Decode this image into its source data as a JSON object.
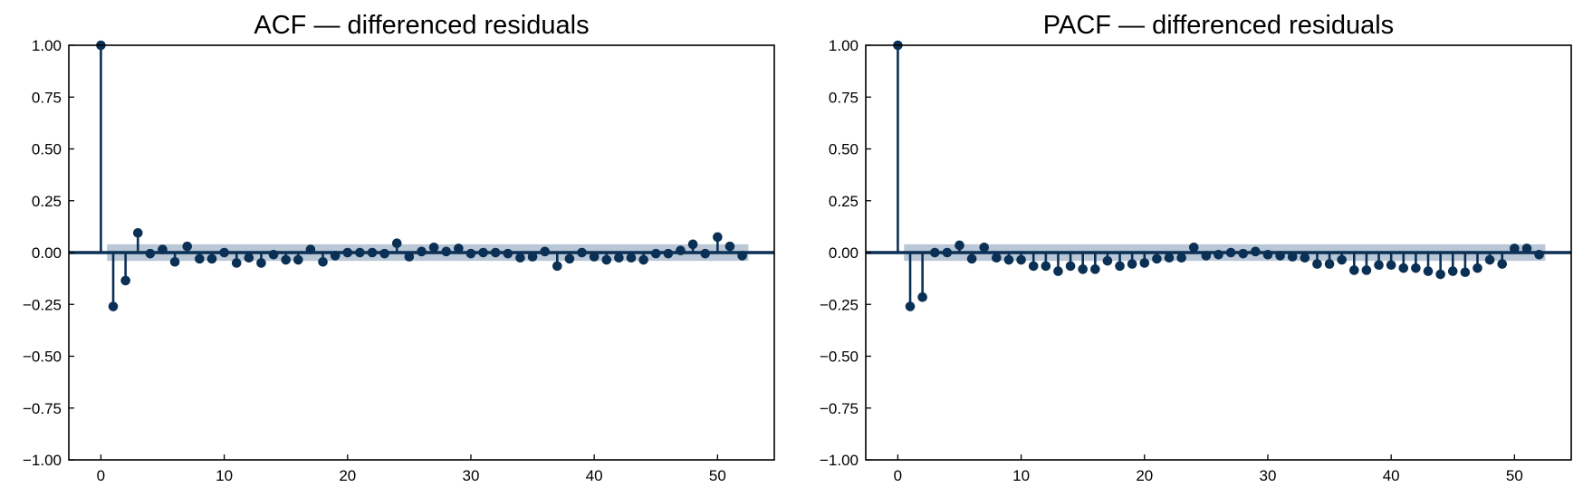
{
  "colors": {
    "stem": "#0b3055",
    "band": "#b9c7d6",
    "axis": "#000000"
  },
  "chart_data": [
    {
      "type": "stem",
      "title": "ACF — differenced residuals",
      "xlabel": "",
      "ylabel": "",
      "xlim": [
        -2.6,
        54.6
      ],
      "ylim": [
        -1.0,
        1.0
      ],
      "xticks": [
        0,
        10,
        20,
        30,
        40,
        50
      ],
      "yticks": [
        -1.0,
        -0.75,
        -0.5,
        -0.25,
        0.0,
        0.25,
        0.5,
        0.75,
        1.0
      ],
      "xtick_labels": [
        "0",
        "10",
        "20",
        "30",
        "40",
        "50"
      ],
      "ytick_labels": [
        "−1.00",
        "−0.75",
        "−0.50",
        "−0.25",
        "0.00",
        "0.25",
        "0.50",
        "0.75",
        "1.00"
      ],
      "confidence_band": {
        "x": [
          0.5,
          52.5
        ],
        "upper": 0.04,
        "lower": -0.04
      },
      "grid": false,
      "lags": [
        0,
        1,
        2,
        3,
        4,
        5,
        6,
        7,
        8,
        9,
        10,
        11,
        12,
        13,
        14,
        15,
        16,
        17,
        18,
        19,
        20,
        21,
        22,
        23,
        24,
        25,
        26,
        27,
        28,
        29,
        30,
        31,
        32,
        33,
        34,
        35,
        36,
        37,
        38,
        39,
        40,
        41,
        42,
        43,
        44,
        45,
        46,
        47,
        48,
        49,
        50,
        51,
        52
      ],
      "values": [
        1.0,
        -0.26,
        -0.135,
        0.095,
        -0.005,
        0.015,
        -0.045,
        0.03,
        -0.03,
        -0.03,
        0.0,
        -0.05,
        -0.025,
        -0.05,
        -0.01,
        -0.035,
        -0.035,
        0.015,
        -0.045,
        -0.015,
        0.0,
        0.0,
        0.0,
        -0.005,
        0.045,
        -0.02,
        0.005,
        0.025,
        0.005,
        0.02,
        -0.005,
        0.0,
        0.0,
        -0.005,
        -0.025,
        -0.02,
        0.005,
        -0.065,
        -0.03,
        0.0,
        -0.02,
        -0.035,
        -0.025,
        -0.025,
        -0.035,
        -0.005,
        -0.005,
        0.01,
        0.04,
        -0.005,
        0.075,
        0.03,
        -0.015
      ]
    },
    {
      "type": "stem",
      "title": "PACF — differenced residuals",
      "xlabel": "",
      "ylabel": "",
      "xlim": [
        -2.6,
        54.6
      ],
      "ylim": [
        -1.0,
        1.0
      ],
      "xticks": [
        0,
        10,
        20,
        30,
        40,
        50
      ],
      "yticks": [
        -1.0,
        -0.75,
        -0.5,
        -0.25,
        0.0,
        0.25,
        0.5,
        0.75,
        1.0
      ],
      "xtick_labels": [
        "0",
        "10",
        "20",
        "30",
        "40",
        "50"
      ],
      "ytick_labels": [
        "−1.00",
        "−0.75",
        "−0.50",
        "−0.25",
        "0.00",
        "0.25",
        "0.50",
        "0.75",
        "1.00"
      ],
      "confidence_band": {
        "x": [
          0.5,
          52.5
        ],
        "upper": 0.04,
        "lower": -0.04
      },
      "grid": false,
      "lags": [
        0,
        1,
        2,
        3,
        4,
        5,
        6,
        7,
        8,
        9,
        10,
        11,
        12,
        13,
        14,
        15,
        16,
        17,
        18,
        19,
        20,
        21,
        22,
        23,
        24,
        25,
        26,
        27,
        28,
        29,
        30,
        31,
        32,
        33,
        34,
        35,
        36,
        37,
        38,
        39,
        40,
        41,
        42,
        43,
        44,
        45,
        46,
        47,
        48,
        49,
        50,
        51,
        52
      ],
      "values": [
        1.0,
        -0.26,
        -0.215,
        0.0,
        0.0,
        0.035,
        -0.03,
        0.025,
        -0.025,
        -0.035,
        -0.035,
        -0.065,
        -0.065,
        -0.09,
        -0.065,
        -0.08,
        -0.08,
        -0.04,
        -0.065,
        -0.055,
        -0.05,
        -0.03,
        -0.025,
        -0.025,
        0.025,
        -0.015,
        -0.01,
        0.0,
        -0.005,
        0.005,
        -0.01,
        -0.015,
        -0.02,
        -0.025,
        -0.055,
        -0.055,
        -0.035,
        -0.085,
        -0.085,
        -0.06,
        -0.06,
        -0.075,
        -0.075,
        -0.09,
        -0.105,
        -0.09,
        -0.095,
        -0.075,
        -0.035,
        -0.055,
        0.02,
        0.02,
        -0.01
      ]
    }
  ]
}
